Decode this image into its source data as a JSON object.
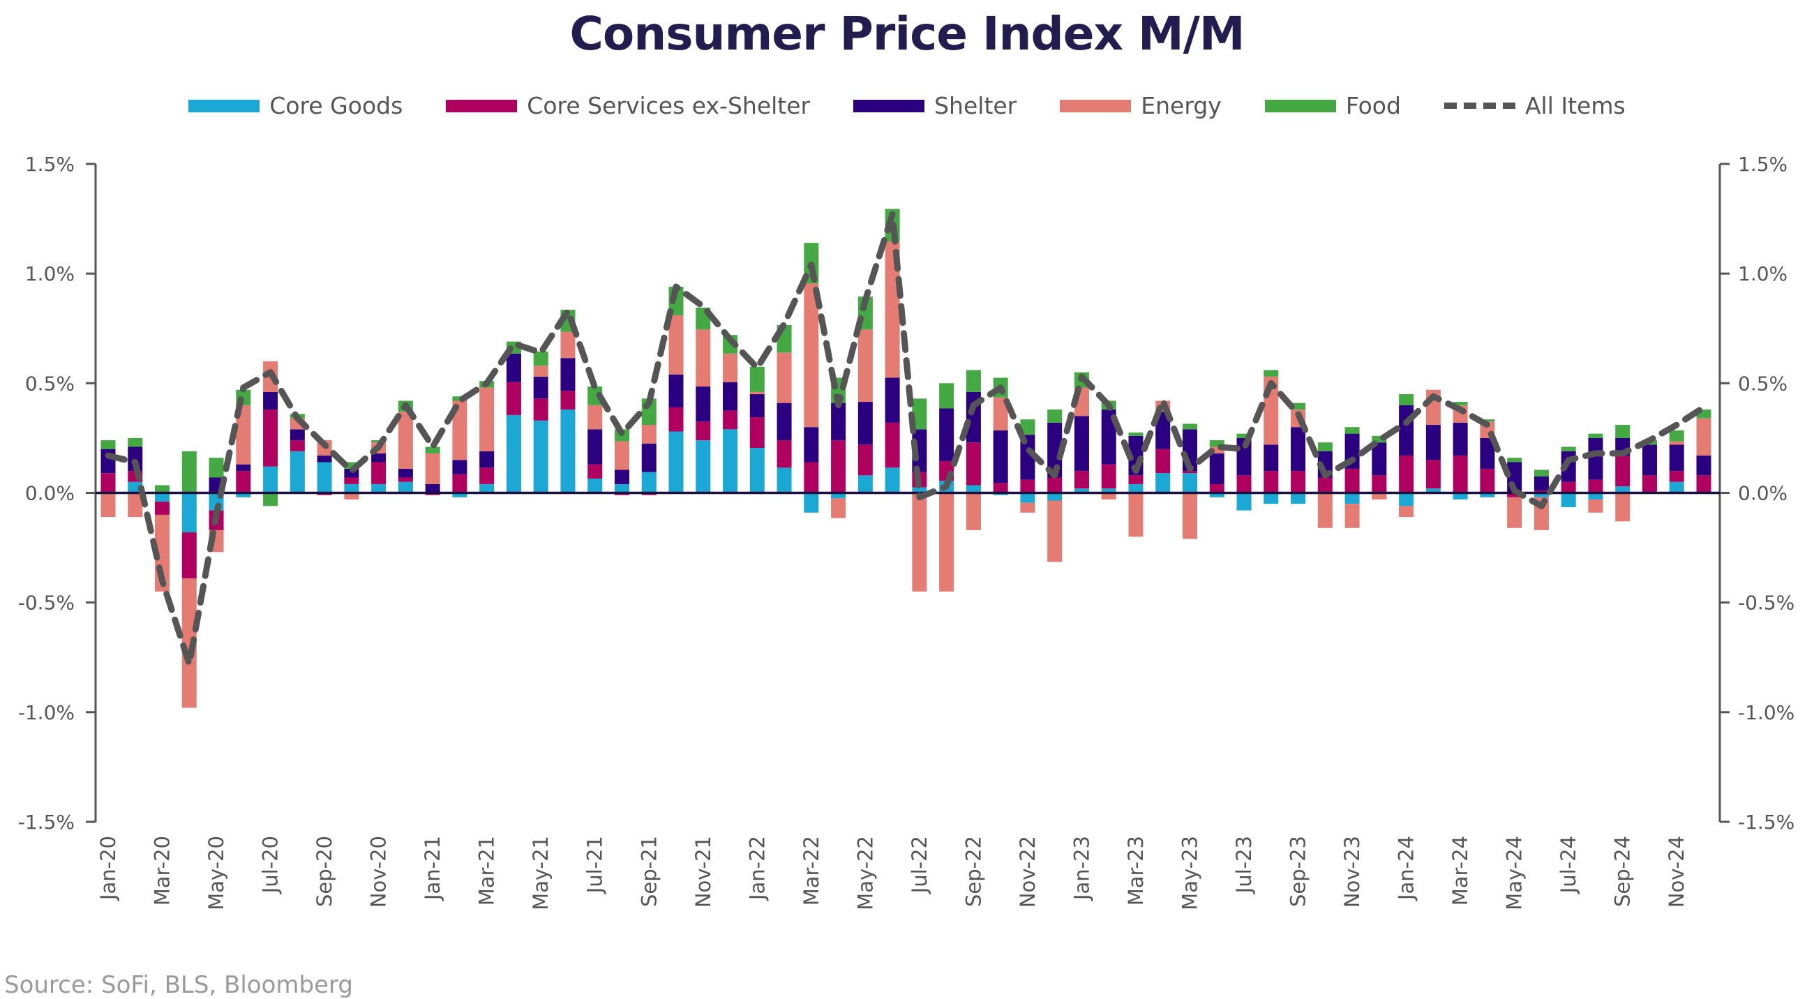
{
  "chart_data": {
    "type": "bar",
    "stacked": true,
    "title": "Consumer Price Index M/M",
    "xlabel": "",
    "ylabel": "",
    "ylim": [
      -1.5,
      1.5
    ],
    "y_ticks": [
      "1.5%",
      "1.0%",
      "0.5%",
      "0.0%",
      "-0.5%",
      "-1.0%",
      "-1.5%"
    ],
    "y_tick_values": [
      1.5,
      1.0,
      0.5,
      0.0,
      -0.5,
      -1.0,
      -1.5
    ],
    "legend_position": "top-center",
    "categories": [
      "Jan-20",
      "Feb-20",
      "Mar-20",
      "Apr-20",
      "May-20",
      "Jun-20",
      "Jul-20",
      "Aug-20",
      "Sep-20",
      "Oct-20",
      "Nov-20",
      "Dec-20",
      "Jan-21",
      "Feb-21",
      "Mar-21",
      "Apr-21",
      "May-21",
      "Jun-21",
      "Jul-21",
      "Aug-21",
      "Sep-21",
      "Oct-21",
      "Nov-21",
      "Dec-21",
      "Jan-22",
      "Feb-22",
      "Mar-22",
      "Apr-22",
      "May-22",
      "Jun-22",
      "Jul-22",
      "Aug-22",
      "Sep-22",
      "Oct-22",
      "Nov-22",
      "Dec-22",
      "Jan-23",
      "Feb-23",
      "Mar-23",
      "Apr-23",
      "May-23",
      "Jun-23",
      "Jul-23",
      "Aug-23",
      "Sep-23",
      "Oct-23",
      "Nov-23",
      "Dec-23",
      "Jan-24",
      "Feb-24",
      "Mar-24",
      "Apr-24",
      "May-24",
      "Jun-24",
      "Jul-24",
      "Aug-24",
      "Sep-24",
      "Oct-24",
      "Nov-24",
      "Dec-24"
    ],
    "x_tick_labels": [
      "Jan-20",
      "Mar-20",
      "May-20",
      "Jul-20",
      "Sep-20",
      "Nov-20",
      "Jan-21",
      "Mar-21",
      "May-21",
      "Jul-21",
      "Sep-21",
      "Nov-21",
      "Jan-22",
      "Mar-22",
      "May-22",
      "Jul-22",
      "Sep-22",
      "Nov-22",
      "Jan-23",
      "Mar-23",
      "May-23",
      "Jul-23",
      "Sep-23",
      "Nov-23",
      "Jan-24",
      "Mar-24",
      "May-24",
      "Jul-24",
      "Sep-24",
      "Nov-24"
    ],
    "series": [
      {
        "name": "Core Goods",
        "color": "#1ba8d4",
        "values": [
          0,
          0.05,
          -0.04,
          -0.18,
          -0.08,
          -0.02,
          0.12,
          0.19,
          0.14,
          0.04,
          0.04,
          0.05,
          0,
          -0.02,
          0.04,
          0.355,
          0.33,
          0.38,
          0.065,
          0.04,
          0.095,
          0.28,
          0.24,
          0.29,
          0.205,
          0.115,
          -0.09,
          -0.025,
          0.08,
          0.115,
          0.025,
          0.055,
          0.035,
          -0.01,
          -0.045,
          -0.035,
          0.02,
          0.02,
          0.04,
          0.09,
          0.09,
          -0.02,
          -0.08,
          -0.05,
          -0.05,
          0,
          -0.05,
          0,
          -0.06,
          0.02,
          -0.03,
          -0.02,
          0,
          -0.02,
          -0.065,
          -0.03,
          0.03,
          0,
          0.05,
          0
        ]
      },
      {
        "name": "Core Services ex-Shelter",
        "color": "#b0005f",
        "values": [
          0.09,
          0.05,
          -0.06,
          -0.21,
          -0.09,
          0.1,
          0.26,
          0.05,
          -0.01,
          0.03,
          0.1,
          0.02,
          -0.01,
          0.085,
          0.075,
          0.15,
          0.1,
          0.085,
          0.065,
          -0.01,
          -0.01,
          0.11,
          0.085,
          0.085,
          0.14,
          0.125,
          0.14,
          0.24,
          0.14,
          0.205,
          0.07,
          0.09,
          0.195,
          0.045,
          0.06,
          0.07,
          0.08,
          0.11,
          0.04,
          0.11,
          0.01,
          0.04,
          0.08,
          0.1,
          0.1,
          0.07,
          0.11,
          0.08,
          0.17,
          0.13,
          0.17,
          0.11,
          -0.02,
          0.01,
          0.05,
          0.06,
          0.14,
          0.08,
          0.05,
          0.08
        ]
      },
      {
        "name": "Shelter",
        "color": "#2b0080",
        "values": [
          0.11,
          0.11,
          0,
          0,
          0.07,
          0.03,
          0.08,
          0.05,
          0.03,
          0.04,
          0.04,
          0.04,
          0.04,
          0.065,
          0.075,
          0.13,
          0.1,
          0.15,
          0.16,
          0.065,
          0.13,
          0.15,
          0.16,
          0.13,
          0.105,
          0.17,
          0.16,
          0.17,
          0.195,
          0.205,
          0.195,
          0.24,
          0.23,
          0.24,
          0.205,
          0.25,
          0.25,
          0.25,
          0.18,
          0.17,
          0.19,
          0.14,
          0.17,
          0.12,
          0.2,
          0.12,
          0.16,
          0.15,
          0.23,
          0.16,
          0.15,
          0.14,
          0.14,
          0.065,
          0.14,
          0.19,
          0.08,
          0.14,
          0.12,
          0.09
        ]
      },
      {
        "name": "Energy",
        "color": "#e57c73",
        "values": [
          -0.11,
          -0.11,
          -0.35,
          -0.59,
          -0.1,
          0.27,
          0.14,
          0.05,
          0.07,
          -0.03,
          0.05,
          0.26,
          0.14,
          0.27,
          0.29,
          0,
          0.05,
          0.12,
          0.11,
          0.13,
          0.085,
          0.27,
          0.26,
          0.13,
          0.01,
          0.23,
          0.655,
          -0.09,
          0.33,
          0.62,
          -0.45,
          -0.45,
          -0.17,
          0.15,
          -0.045,
          -0.28,
          0.13,
          -0.03,
          -0.2,
          0.05,
          -0.21,
          0.03,
          0,
          0.31,
          0.08,
          -0.16,
          -0.11,
          -0.03,
          -0.05,
          0.16,
          0.08,
          0.075,
          -0.14,
          -0.15,
          0,
          -0.06,
          -0.13,
          0,
          0.015,
          0.17
        ]
      },
      {
        "name": "Food",
        "color": "#44a843",
        "values": [
          0.04,
          0.04,
          0.035,
          0.19,
          0.09,
          0.07,
          -0.06,
          0.02,
          0,
          0.03,
          0.01,
          0.05,
          0.03,
          0.02,
          0.03,
          0.055,
          0.065,
          0.1,
          0.085,
          0.055,
          0.12,
          0.13,
          0.1,
          0.085,
          0.115,
          0.125,
          0.185,
          0.115,
          0.15,
          0.15,
          0.14,
          0.115,
          0.1,
          0.09,
          0.07,
          0.06,
          0.07,
          0.04,
          0.015,
          0,
          0.025,
          0.03,
          0.02,
          0.03,
          0.03,
          0.04,
          0.03,
          0.03,
          0.05,
          0,
          0.015,
          0.01,
          0.02,
          0.03,
          0.02,
          0.02,
          0.06,
          0.02,
          0.05,
          0.04
        ]
      }
    ],
    "line": {
      "name": "All Items",
      "color": "#555555",
      "values": [
        0.17,
        0.14,
        -0.4,
        -0.78,
        -0.1,
        0.48,
        0.55,
        0.34,
        0.22,
        0.1,
        0.21,
        0.4,
        0.21,
        0.42,
        0.5,
        0.68,
        0.64,
        0.83,
        0.48,
        0.27,
        0.41,
        0.94,
        0.85,
        0.7,
        0.57,
        0.77,
        1.04,
        0.4,
        0.88,
        1.27,
        -0.02,
        0.03,
        0.4,
        0.48,
        0.2,
        0.08,
        0.53,
        0.4,
        0.1,
        0.42,
        0.11,
        0.21,
        0.2,
        0.5,
        0.36,
        0.08,
        0.15,
        0.24,
        0.32,
        0.44,
        0.38,
        0.31,
        0.01,
        -0.06,
        0.15,
        0.18,
        0.18,
        0.24,
        0.31,
        0.39
      ]
    }
  },
  "source": "Source: SoFi, BLS, Bloomberg"
}
